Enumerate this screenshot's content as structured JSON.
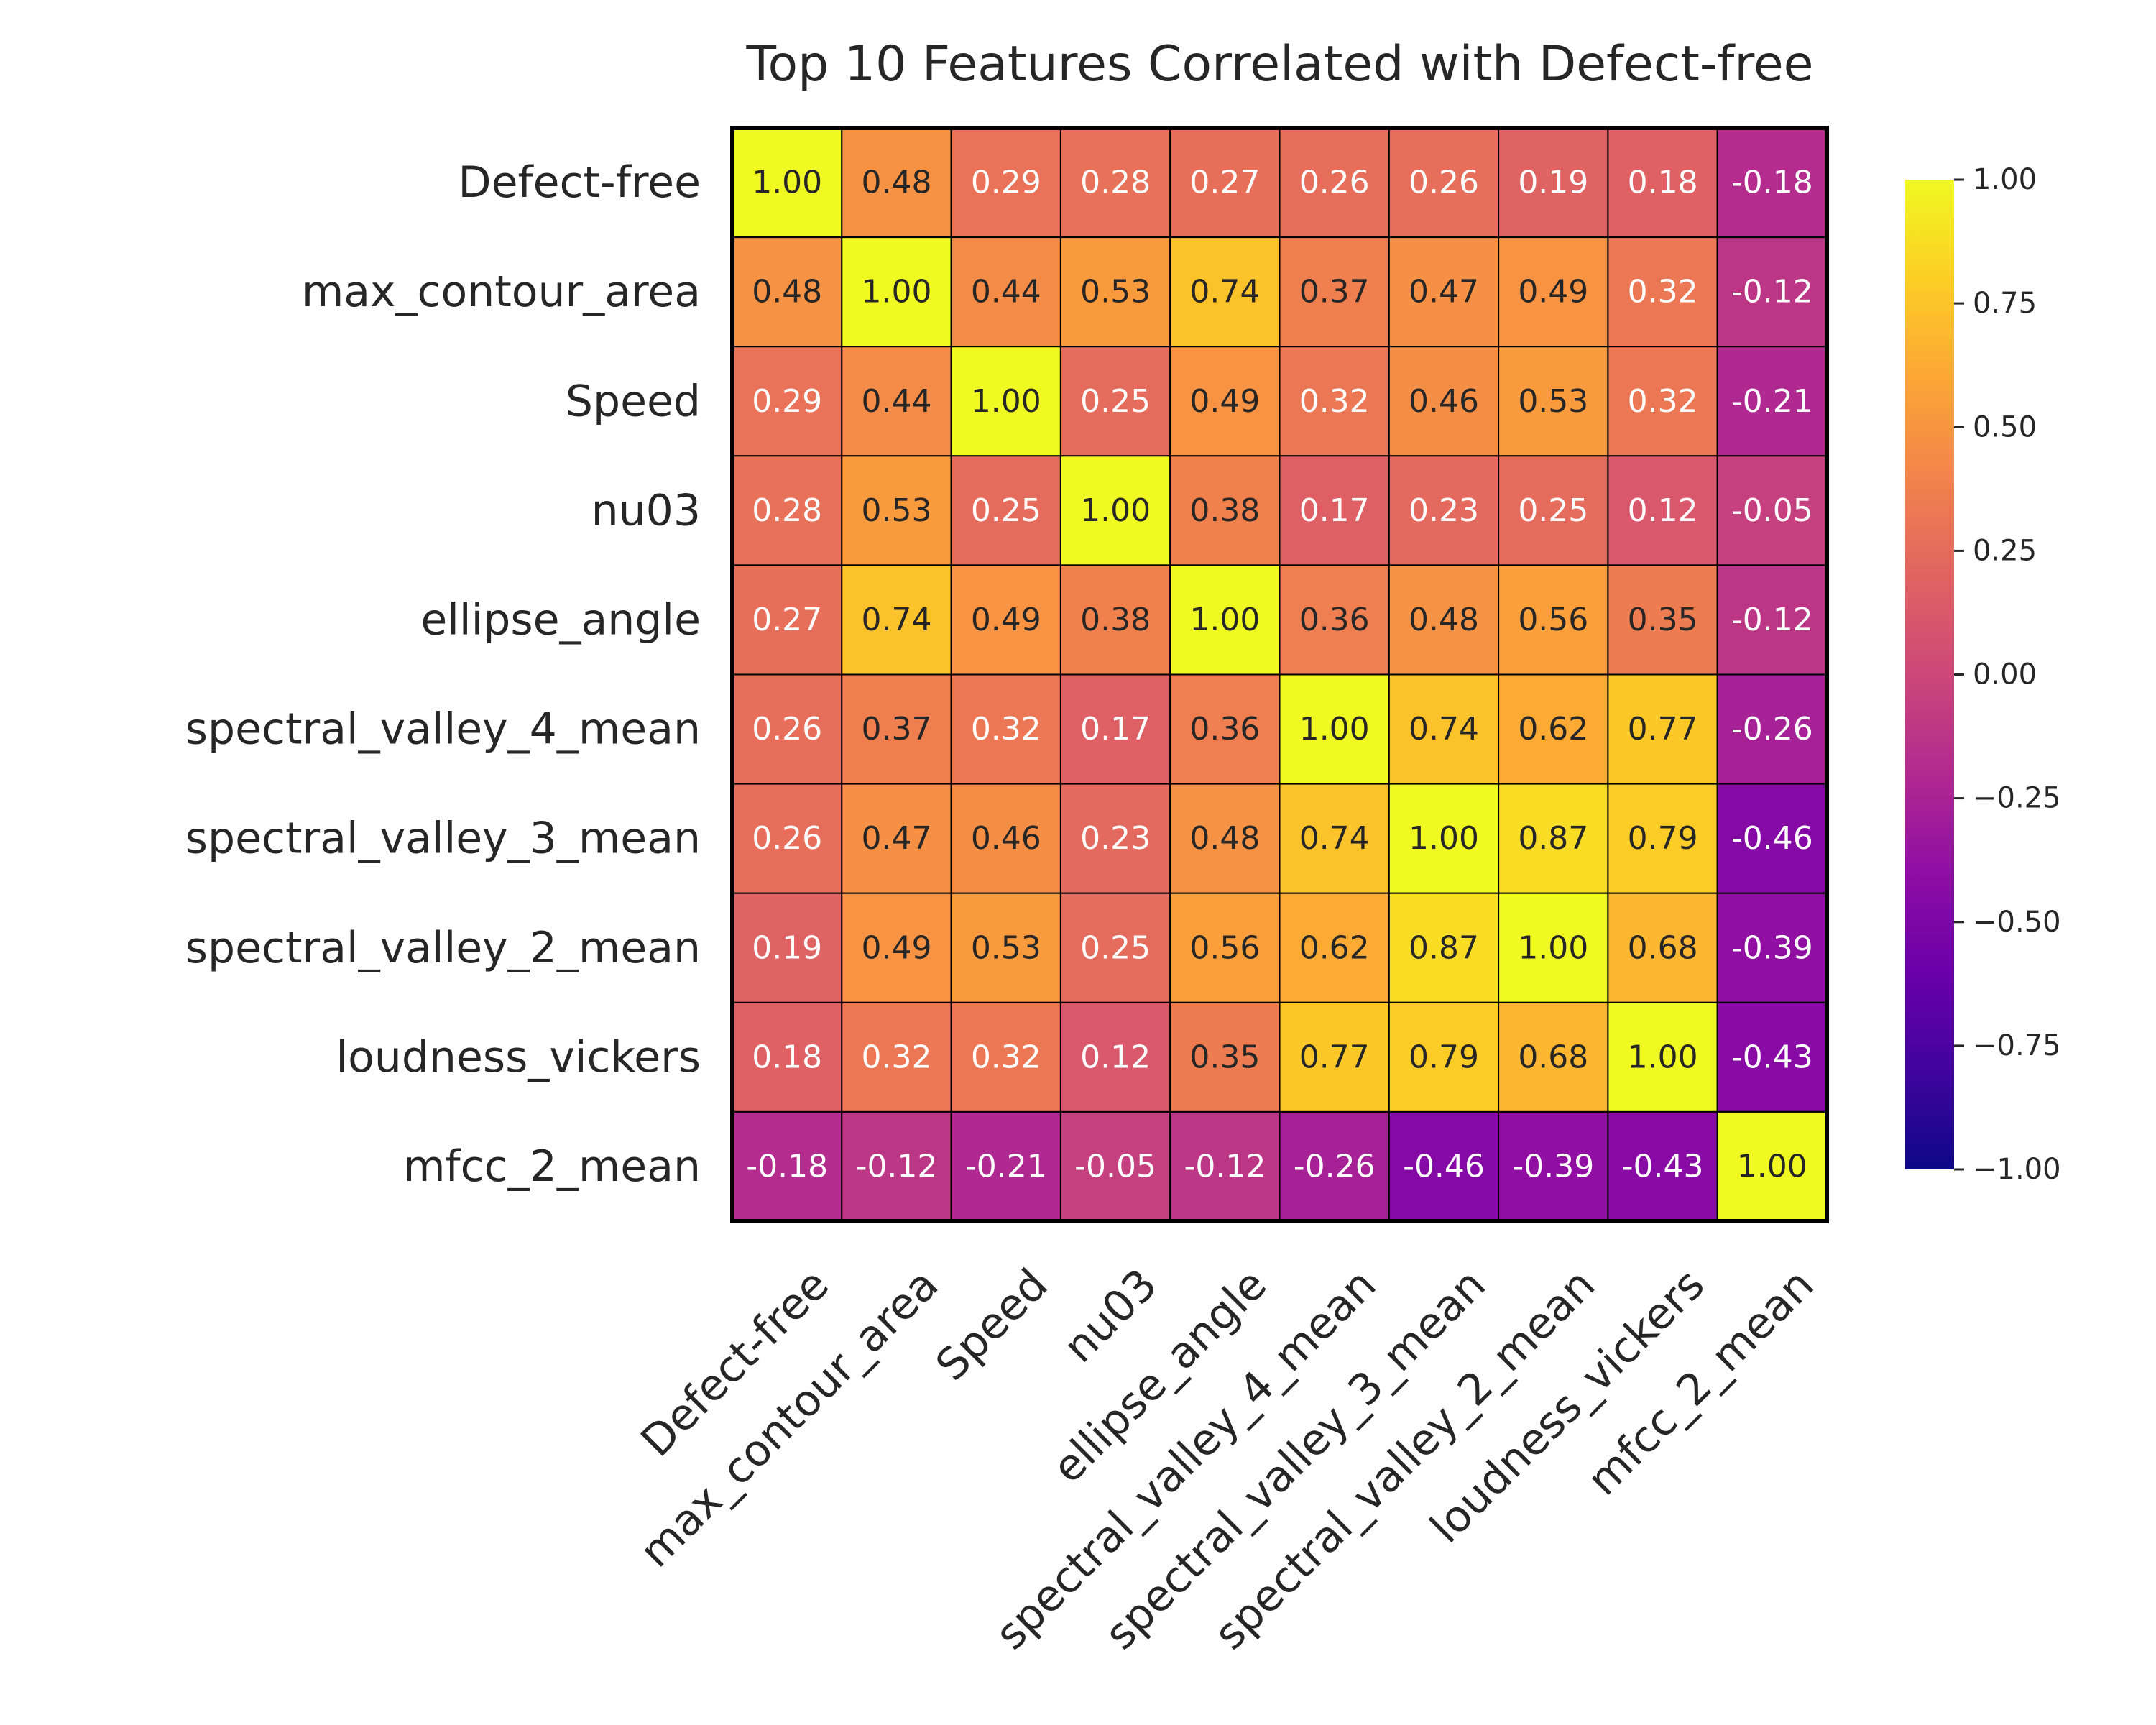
{
  "chart_data": {
    "type": "heatmap",
    "title": "Top 10 Features Correlated with Defect-free",
    "colormap": "plasma",
    "vmin": -1.0,
    "vmax": 1.0,
    "xlabel": "",
    "ylabel": "",
    "labels": [
      "Defect-free",
      "max_contour_area",
      "Speed",
      "nu03",
      "ellipse_angle",
      "spectral_valley_4_mean",
      "spectral_valley_3_mean",
      "spectral_valley_2_mean",
      "loudness_vickers",
      "mfcc_2_mean"
    ],
    "matrix": [
      [
        1.0,
        0.48,
        0.29,
        0.28,
        0.27,
        0.26,
        0.26,
        0.19,
        0.18,
        -0.18
      ],
      [
        0.48,
        1.0,
        0.44,
        0.53,
        0.74,
        0.37,
        0.47,
        0.49,
        0.32,
        -0.12
      ],
      [
        0.29,
        0.44,
        1.0,
        0.25,
        0.49,
        0.32,
        0.46,
        0.53,
        0.32,
        -0.21
      ],
      [
        0.28,
        0.53,
        0.25,
        1.0,
        0.38,
        0.17,
        0.23,
        0.25,
        0.12,
        -0.05
      ],
      [
        0.27,
        0.74,
        0.49,
        0.38,
        1.0,
        0.36,
        0.48,
        0.56,
        0.35,
        -0.12
      ],
      [
        0.26,
        0.37,
        0.32,
        0.17,
        0.36,
        1.0,
        0.74,
        0.62,
        0.77,
        -0.26
      ],
      [
        0.26,
        0.47,
        0.46,
        0.23,
        0.48,
        0.74,
        1.0,
        0.87,
        0.79,
        -0.46
      ],
      [
        0.19,
        0.49,
        0.53,
        0.25,
        0.56,
        0.62,
        0.87,
        1.0,
        0.68,
        -0.39
      ],
      [
        0.18,
        0.32,
        0.32,
        0.12,
        0.35,
        0.77,
        0.79,
        0.68,
        1.0,
        -0.43
      ],
      [
        -0.18,
        -0.12,
        -0.21,
        -0.05,
        -0.12,
        -0.26,
        -0.46,
        -0.39,
        -0.43,
        1.0
      ]
    ],
    "colorbar_ticks": [
      "1.00",
      "0.75",
      "0.50",
      "0.25",
      "0.00",
      "−0.25",
      "−0.50",
      "−0.75",
      "−1.00"
    ],
    "colorbar_tick_values": [
      1.0,
      0.75,
      0.5,
      0.25,
      0.0,
      -0.25,
      -0.5,
      -0.75,
      -1.0
    ],
    "annotation_format": "0.00"
  }
}
